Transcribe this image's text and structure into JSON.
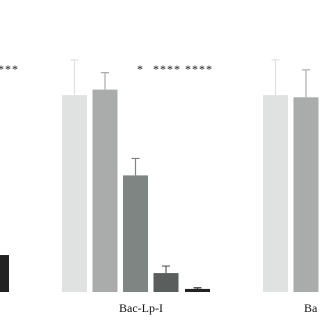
{
  "chart_data": {
    "type": "bar",
    "categories": [
      null,
      "Bac-Lp-I",
      "Ba"
    ],
    "series": [
      {
        "color": "#e0e2e2",
        "values": [
          null,
          89.5,
          89.5
        ],
        "errors": [
          null,
          16,
          16
        ]
      },
      {
        "color": "#a9acab",
        "values": [
          null,
          92,
          88.5
        ],
        "errors": [
          null,
          7.7,
          12.5
        ]
      },
      {
        "color": "#7e8583",
        "values": [
          null,
          53,
          null
        ],
        "errors": [
          null,
          7.7,
          null
        ]
      },
      {
        "color": "#5a5e5d",
        "values": [
          null,
          8.6,
          null
        ],
        "errors": [
          null,
          3.2,
          null
        ]
      },
      {
        "color": "#222222",
        "values": [
          16.8,
          1.4,
          null
        ],
        "errors": [
          null,
          0.5,
          null
        ]
      }
    ],
    "annotations": [
      "***",
      "*",
      "****",
      "****"
    ],
    "ylim": [
      0,
      100
    ]
  }
}
